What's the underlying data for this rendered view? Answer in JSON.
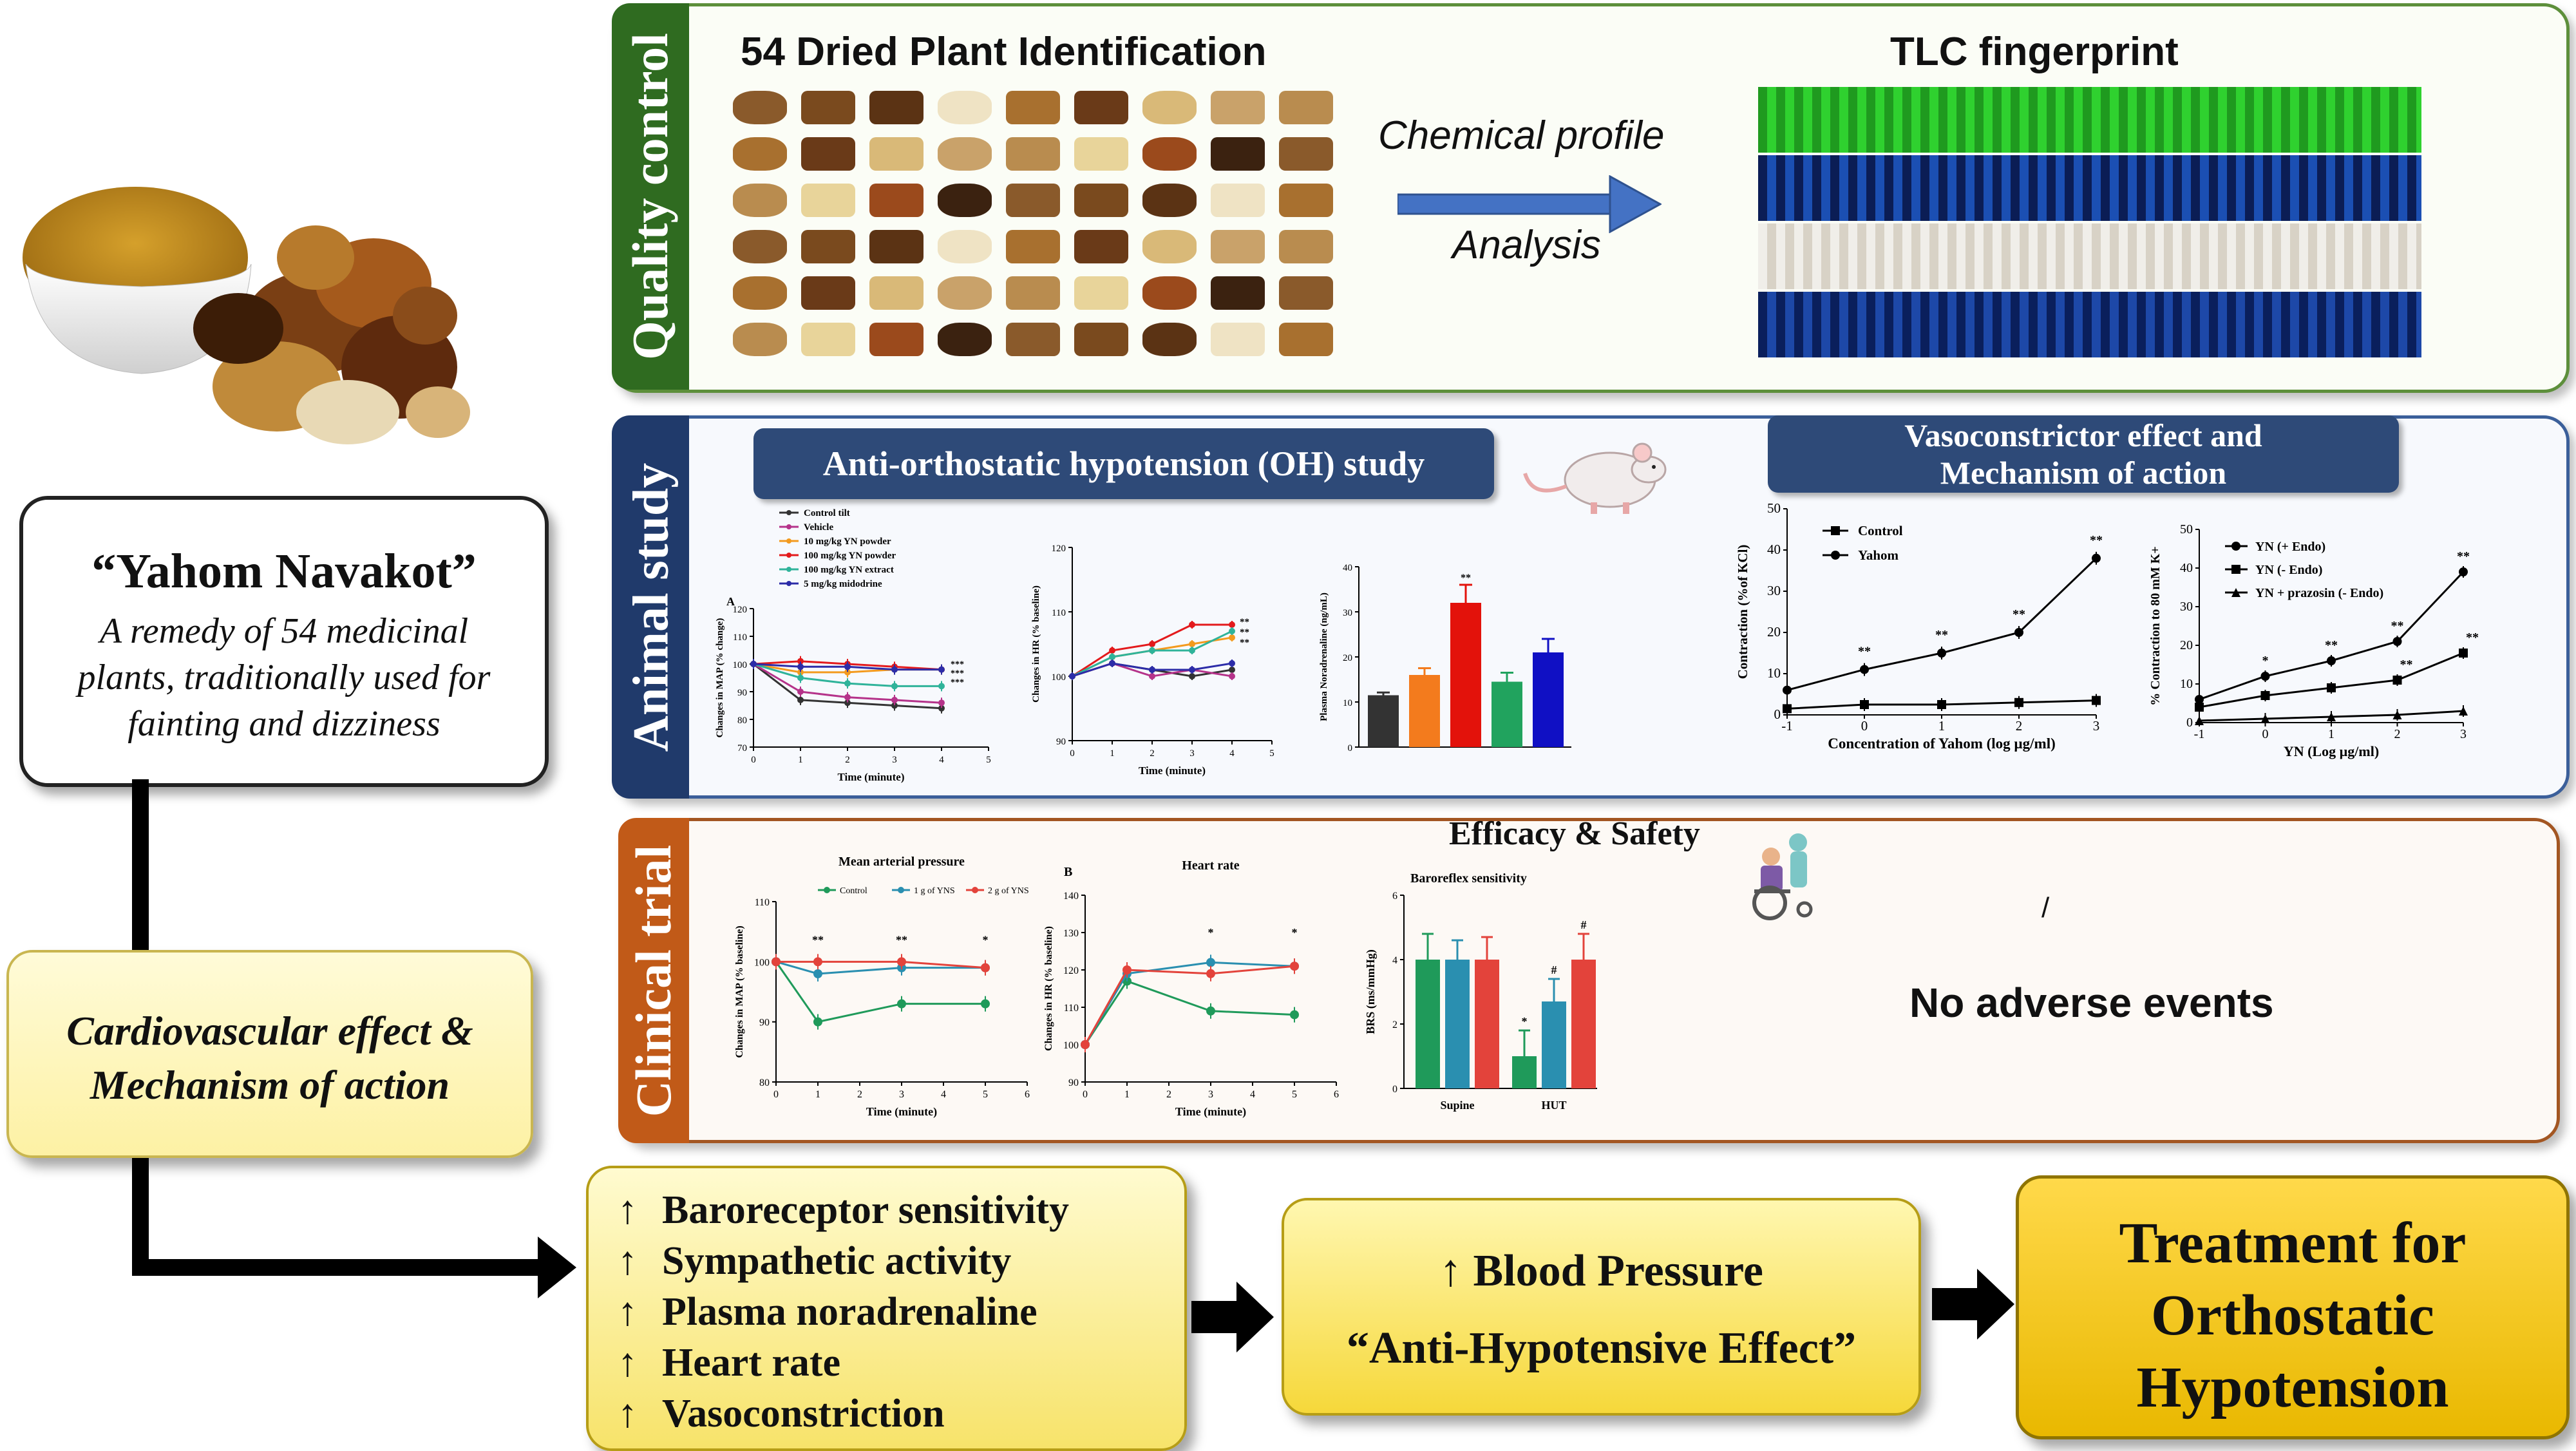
{
  "remedy": {
    "title": "“Yahom Navakot”",
    "description_lines": [
      "A remedy of 54 medicinal",
      "plants, traditionally used for",
      "fainting and dizziness"
    ]
  },
  "cardio_box": {
    "lines": [
      "Cardiovascular effect &",
      "Mechanism of action"
    ]
  },
  "quality_control": {
    "tab_label": "Quality control",
    "plant_title": "54 Dried Plant Identification",
    "arrow_top": "Chemical profile",
    "arrow_bottom": "Analysis",
    "tlc_title": "TLC fingerprint"
  },
  "animal_study": {
    "tab_label": "Animal study",
    "oh_banner": "Anti-orthostatic hypotension (OH)  study",
    "vaso_banner": [
      "Vasoconstrictor  effect and",
      "Mechanism of action"
    ]
  },
  "clinical_trial": {
    "tab_label": "Clinical trial",
    "efficacy_title": "Efficacy & Safety",
    "no_adverse": "No adverse events",
    "stray_mark": "/"
  },
  "effects_box": {
    "arrow_symbol": "↑",
    "items": [
      "Baroreceptor sensitivity",
      "Sympathetic activity",
      "Plasma noradrenaline",
      "Heart rate",
      "Vasoconstriction"
    ]
  },
  "bp_box": {
    "line1": "↑ Blood Pressure",
    "line2": "“Anti-Hypotensive Effect”"
  },
  "treatment_box": {
    "lines": [
      "Treatment for",
      "Orthostatic",
      "Hypotension"
    ]
  },
  "colors": {
    "qc_tab": "#2f6b20",
    "animal_tab": "#203a6b",
    "clinical_tab": "#c15a18",
    "qc_border": "#5d8f3b",
    "animal_border": "#3b5f9a",
    "clinical_border": "#a35622",
    "banner": "#2e4a78",
    "flow_arrow": "#4472c4",
    "gold": "#f3c600"
  },
  "chart_data": [
    {
      "id": "A",
      "type": "line",
      "title": "",
      "panel_label": "A",
      "xlabel": "Time (minute)",
      "ylabel": "Changes in MAP (% change)",
      "xlim": [
        0,
        5
      ],
      "ylim": [
        70,
        120
      ],
      "xticks": [
        0,
        1,
        2,
        3,
        4,
        5
      ],
      "yticks": [
        70,
        80,
        90,
        100,
        110,
        120
      ],
      "x": [
        0,
        1,
        2,
        3,
        4
      ],
      "series": [
        {
          "name": "Control tilt",
          "color": "#333333",
          "values": [
            100,
            87,
            86,
            85,
            84
          ]
        },
        {
          "name": "Vehicle",
          "color": "#b5338a",
          "values": [
            100,
            90,
            88,
            87,
            86
          ]
        },
        {
          "name": "10 mg/kg YN powder",
          "color": "#f39a1e",
          "values": [
            100,
            97,
            97,
            98,
            98
          ]
        },
        {
          "name": "100 mg/kg YN powder",
          "color": "#e31a1c",
          "values": [
            100,
            101,
            100,
            99,
            98
          ]
        },
        {
          "name": "100 mg/kg YN extract",
          "color": "#2fb39a",
          "values": [
            100,
            95,
            93,
            92,
            92
          ]
        },
        {
          "name": "5 mg/kg midodrine",
          "color": "#2c2ca8",
          "values": [
            100,
            99,
            99,
            98,
            98
          ]
        }
      ],
      "annotations": [
        "***",
        "***",
        "***"
      ]
    },
    {
      "id": "B",
      "type": "line",
      "title": "",
      "xlabel": "Time (minute)",
      "ylabel": "Changes in HR (% baseline)",
      "xlim": [
        0,
        5
      ],
      "ylim": [
        90,
        120
      ],
      "xticks": [
        0,
        1,
        2,
        3,
        4,
        5
      ],
      "yticks": [
        90,
        100,
        110,
        120
      ],
      "x": [
        0,
        1,
        2,
        3,
        4
      ],
      "series": [
        {
          "name": "Control tilt",
          "color": "#333333",
          "values": [
            100,
            102,
            101,
            100,
            101
          ]
        },
        {
          "name": "Vehicle",
          "color": "#b5338a",
          "values": [
            100,
            102,
            100,
            101,
            100
          ]
        },
        {
          "name": "10 mg/kg YN powder",
          "color": "#f39a1e",
          "values": [
            100,
            103,
            104,
            105,
            106
          ]
        },
        {
          "name": "100 mg/kg YN powder",
          "color": "#e31a1c",
          "values": [
            100,
            104,
            105,
            108,
            108
          ]
        },
        {
          "name": "100 mg/kg YN extract",
          "color": "#2fb39a",
          "values": [
            100,
            103,
            104,
            104,
            107
          ]
        },
        {
          "name": "5 mg/kg midodrine",
          "color": "#2c2ca8",
          "values": [
            100,
            102,
            101,
            101,
            102
          ]
        }
      ],
      "annotations": [
        "**",
        "**",
        "**"
      ]
    },
    {
      "id": "C",
      "type": "bar",
      "title": "",
      "ylabel": "Plasma Noradrenaline (ng/mL)",
      "ylim": [
        0,
        40
      ],
      "yticks": [
        0,
        10,
        20,
        30,
        40
      ],
      "values": [
        11.5,
        16,
        32,
        14.5,
        21
      ],
      "errors": [
        0.6,
        1.5,
        4,
        2,
        3
      ],
      "colors": [
        "#333333",
        "#f37b1d",
        "#e3120b",
        "#21a35e",
        "#1010c4"
      ],
      "annotations": [
        "**"
      ]
    },
    {
      "id": "D",
      "type": "line",
      "title": "",
      "xlabel": "Concentration of Yahom (log µg/ml)",
      "ylabel": "Contraction (%of KCl)",
      "xlim": [
        -1,
        3
      ],
      "ylim": [
        0,
        50
      ],
      "xticks": [
        -1,
        0,
        1,
        2,
        3
      ],
      "yticks": [
        0,
        10,
        20,
        30,
        40,
        50
      ],
      "x": [
        -1,
        0,
        1,
        2,
        3
      ],
      "series": [
        {
          "name": "Control",
          "marker": "square",
          "values": [
            1.5,
            2.5,
            2.5,
            3,
            3.5
          ]
        },
        {
          "name": "Yahom",
          "marker": "circle",
          "values": [
            6,
            11,
            15,
            20,
            38
          ]
        }
      ],
      "annotations": [
        "**",
        "**",
        "**",
        "**"
      ]
    },
    {
      "id": "E",
      "type": "line",
      "title": "",
      "xlabel": "YN (Log µg/ml)",
      "ylabel": "% Contraction to 80 mM K+",
      "xlim": [
        -1,
        3
      ],
      "ylim": [
        0,
        50
      ],
      "xticks": [
        -1,
        0,
        1,
        2,
        3
      ],
      "yticks": [
        0,
        10,
        20,
        30,
        40,
        50
      ],
      "x": [
        -1,
        0,
        1,
        2,
        3
      ],
      "series": [
        {
          "name": "YN (+ Endo)",
          "marker": "circle",
          "values": [
            6,
            12,
            16,
            21,
            39
          ]
        },
        {
          "name": "YN (- Endo)",
          "marker": "square",
          "values": [
            4,
            7,
            9,
            11,
            18
          ]
        },
        {
          "name": "YN + prazosin (- Endo)",
          "marker": "triangle",
          "values": [
            0.5,
            1,
            1.5,
            2,
            3
          ]
        }
      ],
      "annotations": [
        "*",
        "**",
        "**",
        "**",
        "**",
        "**"
      ]
    },
    {
      "id": "F",
      "type": "line",
      "title": "Mean arterial pressure",
      "xlabel": "Time (minute)",
      "ylabel": "Changes in MAP (% baseline)",
      "xlim": [
        0,
        6
      ],
      "ylim": [
        80,
        110
      ],
      "xticks": [
        0,
        1,
        2,
        3,
        4,
        5,
        6
      ],
      "yticks": [
        80,
        90,
        100,
        110
      ],
      "x": [
        0,
        1,
        3,
        5
      ],
      "series": [
        {
          "name": "Control",
          "color": "#1f9a5a",
          "values": [
            100,
            90,
            93,
            93
          ]
        },
        {
          "name": "1 g of YNS",
          "color": "#2a8fb0",
          "values": [
            100,
            98,
            99,
            99
          ]
        },
        {
          "name": "2 g of YNS",
          "color": "#e3433b",
          "values": [
            100,
            100,
            100,
            99
          ]
        }
      ],
      "annotations": [
        "**",
        "**",
        "*"
      ]
    },
    {
      "id": "G",
      "type": "line",
      "title": "Heart rate",
      "panel_label": "B",
      "xlabel": "Time (minute)",
      "ylabel": "Changes in HR (% baseline)",
      "xlim": [
        0,
        6
      ],
      "ylim": [
        90,
        140
      ],
      "xticks": [
        0,
        1,
        2,
        3,
        4,
        5,
        6
      ],
      "yticks": [
        90,
        100,
        110,
        120,
        130,
        140
      ],
      "x": [
        0,
        1,
        3,
        5
      ],
      "series": [
        {
          "name": "Control",
          "color": "#1f9a5a",
          "values": [
            100,
            117,
            109,
            108
          ]
        },
        {
          "name": "1 g of YNS",
          "color": "#2a8fb0",
          "values": [
            100,
            119,
            122,
            121
          ]
        },
        {
          "name": "2 g of YNS",
          "color": "#e3433b",
          "values": [
            100,
            120,
            119,
            121
          ]
        }
      ],
      "annotations": [
        "*",
        "*"
      ]
    },
    {
      "id": "H",
      "type": "bar",
      "title": "Baroreflex sensitivity",
      "ylabel": "BRS (ms/mmHg)",
      "categories": [
        "Supine",
        "HUT"
      ],
      "ylim": [
        0,
        6
      ],
      "yticks": [
        0,
        2,
        4,
        6
      ],
      "series": [
        {
          "color": "#1f9a5a",
          "values": [
            4,
            1
          ]
        },
        {
          "color": "#2a8fb0",
          "values": [
            4,
            2.7
          ]
        },
        {
          "color": "#e3433b",
          "values": [
            4,
            4
          ]
        }
      ],
      "errors": [
        [
          0.8,
          0.8
        ],
        [
          0.6,
          0.7
        ],
        [
          0.7,
          0.8
        ]
      ],
      "annotations": [
        "*",
        "#",
        "#"
      ]
    }
  ]
}
